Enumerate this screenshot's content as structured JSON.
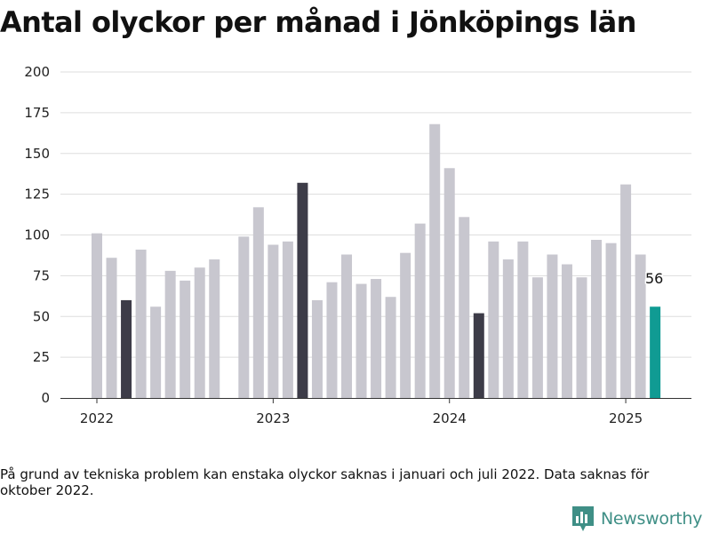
{
  "title": "Antal olyckor per månad i Jönköpings län",
  "footnote": "På grund av tekniska problem kan enstaka olyckor saknas i januari och juli 2022. Data saknas för oktober 2022.",
  "brand": {
    "name": "Newsworthy",
    "icon": "newsworthy-logo-icon"
  },
  "colors": {
    "default": "#c8c7cf",
    "highlight": "#3d3c48",
    "latest": "#109b93",
    "grid": "#dddddd",
    "axis": "#333333"
  },
  "chart_data": {
    "type": "bar",
    "title": "Antal olyckor per månad i Jönköpings län",
    "xlabel": "",
    "ylabel": "",
    "ylim": [
      0,
      200
    ],
    "yticks": [
      0,
      25,
      50,
      75,
      100,
      125,
      150,
      175,
      200
    ],
    "xticks": [
      {
        "label": "2022",
        "month": "2022-01"
      },
      {
        "label": "2023",
        "month": "2023-01"
      },
      {
        "label": "2024",
        "month": "2024-01"
      },
      {
        "label": "2025",
        "month": "2025-01"
      }
    ],
    "grid": true,
    "legend": "none",
    "categories": [
      "2022-01",
      "2022-02",
      "2022-03",
      "2022-04",
      "2022-05",
      "2022-06",
      "2022-07",
      "2022-08",
      "2022-09",
      "2022-10",
      "2022-11",
      "2022-12",
      "2023-01",
      "2023-02",
      "2023-03",
      "2023-04",
      "2023-05",
      "2023-06",
      "2023-07",
      "2023-08",
      "2023-09",
      "2023-10",
      "2023-11",
      "2023-12",
      "2024-01",
      "2024-02",
      "2024-03",
      "2024-04",
      "2024-05",
      "2024-06",
      "2024-07",
      "2024-08",
      "2024-09",
      "2024-10",
      "2024-11",
      "2024-12",
      "2025-01",
      "2025-02",
      "2025-03"
    ],
    "values": [
      101,
      86,
      60,
      91,
      56,
      78,
      72,
      80,
      85,
      null,
      99,
      117,
      94,
      96,
      132,
      60,
      71,
      88,
      70,
      73,
      62,
      89,
      107,
      168,
      141,
      111,
      52,
      96,
      85,
      96,
      74,
      88,
      82,
      74,
      97,
      95,
      131,
      88,
      56
    ],
    "highlighted": [
      "2022-03",
      "2023-03",
      "2024-03"
    ],
    "latest": "2025-03",
    "data_labels": [
      {
        "month": "2025-03",
        "text": "56"
      }
    ]
  }
}
